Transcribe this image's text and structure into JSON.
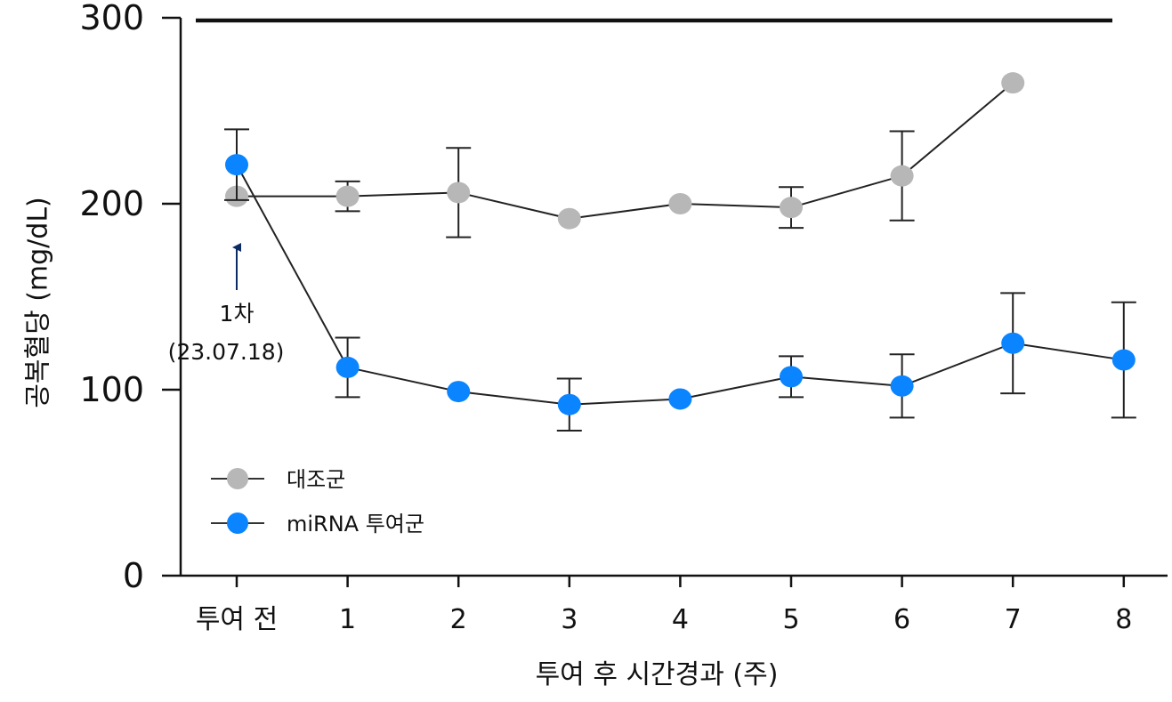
{
  "chart_data": {
    "type": "line",
    "ylabel": "공복혈당 (mg/dL)",
    "xlabel": "투여 후 시간경과 (주)",
    "categories": [
      "투여 전",
      "1",
      "2",
      "3",
      "4",
      "5",
      "6",
      "7",
      "8"
    ],
    "y_ticks": [
      "0",
      "100",
      "200",
      "300"
    ],
    "ylim": [
      0,
      300
    ],
    "reference_line": {
      "y": 300
    },
    "legend_position": "lower-left",
    "series": [
      {
        "name": "대조군",
        "color": "#b7b7b7",
        "values": [
          204,
          204,
          206,
          192,
          200,
          198,
          215,
          265,
          null
        ],
        "error": [
          null,
          8,
          24,
          null,
          null,
          11,
          24,
          null,
          null
        ]
      },
      {
        "name": "miRNA 투여군",
        "color": "#0a84ff",
        "values": [
          221,
          112,
          99,
          92,
          95,
          107,
          102,
          125,
          116
        ],
        "error": [
          19,
          16,
          null,
          14,
          null,
          11,
          17,
          27,
          31
        ]
      }
    ],
    "annotation": {
      "line1": "1차",
      "line2": "(23.07.18)",
      "category_index": 0
    }
  }
}
